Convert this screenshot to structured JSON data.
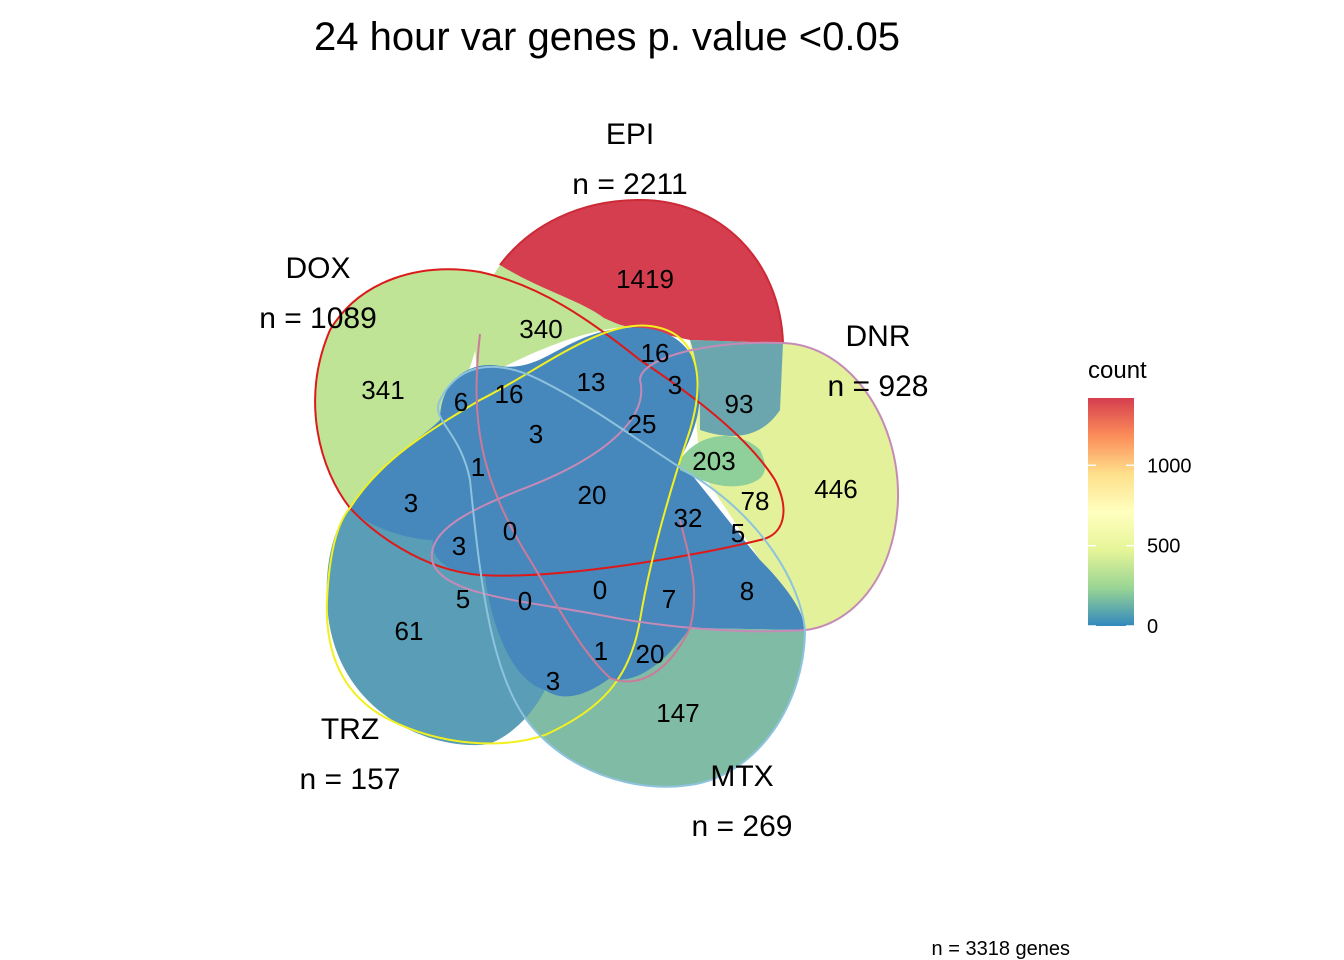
{
  "title": "24 hour var genes p. value <0.05",
  "footer": "n = 3318 genes",
  "legend": {
    "title": "count",
    "ticks": [
      "0",
      "500",
      "1000"
    ],
    "tick_values": [
      0,
      500,
      1000
    ],
    "max": 1419,
    "palette": [
      "#3288BD",
      "#99D594",
      "#E6F598",
      "#FFFFBF",
      "#FEE08B",
      "#FC8D59",
      "#D53E4F"
    ]
  },
  "sets": [
    {
      "key": "EPI",
      "name": "EPI",
      "n": "n = 2211",
      "outline": "#CC2A36"
    },
    {
      "key": "DNR",
      "name": "DNR",
      "n": "n = 928",
      "outline": "#C58BB6"
    },
    {
      "key": "MTX",
      "name": "MTX",
      "n": "n = 269",
      "outline": "#8EC3DE"
    },
    {
      "key": "TRZ",
      "name": "TRZ",
      "n": "n = 157",
      "outline": "#F2F020"
    },
    {
      "key": "DOX",
      "name": "DOX",
      "n": "n = 1089",
      "outline": "#DD1A1A"
    }
  ],
  "regions": [
    {
      "id": "EPI-only",
      "count": "1419",
      "value": 1419
    },
    {
      "id": "DOX-only",
      "count": "341",
      "value": 341
    },
    {
      "id": "DNR-only",
      "count": "446",
      "value": 446
    },
    {
      "id": "MTX-only",
      "count": "147",
      "value": 147
    },
    {
      "id": "TRZ-only",
      "count": "61",
      "value": 61
    },
    {
      "id": "DOX-EPI",
      "count": "340",
      "value": 340
    },
    {
      "id": "EPI-DNR-DOX",
      "count": "203",
      "value": 203
    },
    {
      "id": "EPI-DNR",
      "count": "93",
      "value": 93
    },
    {
      "id": "DNR-DOX",
      "count": "78",
      "value": 78
    },
    {
      "id": "all",
      "count": "20",
      "value": 20
    },
    {
      "id": "r-16a",
      "count": "16",
      "value": 16
    },
    {
      "id": "r-16b",
      "count": "16",
      "value": 16
    },
    {
      "id": "r-13",
      "count": "13",
      "value": 13
    },
    {
      "id": "r-6",
      "count": "6",
      "value": 6
    },
    {
      "id": "r-3a",
      "count": "3",
      "value": 3
    },
    {
      "id": "r-25",
      "count": "25",
      "value": 25
    },
    {
      "id": "r-3b",
      "count": "3",
      "value": 3
    },
    {
      "id": "r-1a",
      "count": "1",
      "value": 1
    },
    {
      "id": "r-3c",
      "count": "3",
      "value": 3
    },
    {
      "id": "r-0a",
      "count": "0",
      "value": 0
    },
    {
      "id": "r-32",
      "count": "32",
      "value": 32
    },
    {
      "id": "r-5a",
      "count": "5",
      "value": 5
    },
    {
      "id": "r-3d",
      "count": "3",
      "value": 3
    },
    {
      "id": "r-8",
      "count": "8",
      "value": 8
    },
    {
      "id": "r-7",
      "count": "7",
      "value": 7
    },
    {
      "id": "r-0b",
      "count": "0",
      "value": 0
    },
    {
      "id": "r-5b",
      "count": "5",
      "value": 5
    },
    {
      "id": "r-0c",
      "count": "0",
      "value": 0
    },
    {
      "id": "r-1b",
      "count": "1",
      "value": 1
    },
    {
      "id": "r-20b",
      "count": "20",
      "value": 20
    },
    {
      "id": "r-3e",
      "count": "3",
      "value": 3
    }
  ]
}
